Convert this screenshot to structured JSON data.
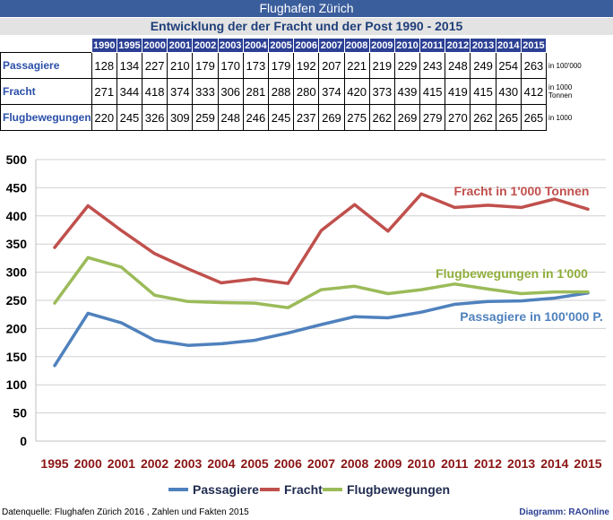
{
  "header": {
    "title": "Flughafen Zürich",
    "subtitle": "Entwicklung der der Fracht und der Post  1990 - 2015"
  },
  "table": {
    "years": [
      "1990",
      "1995",
      "2000",
      "2001",
      "2002",
      "2003",
      "2004",
      "2005",
      "2006",
      "2007",
      "2008",
      "2009",
      "2010",
      "2011",
      "2012",
      "2013",
      "2014",
      "2015"
    ],
    "rows": [
      {
        "label": "Passagiere",
        "values": [
          "128",
          "134",
          "227",
          "210",
          "179",
          "170",
          "173",
          "179",
          "192",
          "207",
          "221",
          "219",
          "229",
          "243",
          "248",
          "249",
          "254",
          "263"
        ],
        "unit": "in 100'000"
      },
      {
        "label": "Fracht",
        "values": [
          "271",
          "344",
          "418",
          "374",
          "333",
          "306",
          "281",
          "288",
          "280",
          "374",
          "420",
          "373",
          "439",
          "415",
          "419",
          "415",
          "430",
          "412"
        ],
        "unit": "in 1000 Tonnen"
      },
      {
        "label": "Flugbewegungen",
        "values": [
          "220",
          "245",
          "326",
          "309",
          "259",
          "248",
          "246",
          "245",
          "237",
          "269",
          "275",
          "262",
          "269",
          "279",
          "270",
          "262",
          "265",
          "265"
        ],
        "unit": "in 1000"
      }
    ]
  },
  "chart_data": {
    "type": "line",
    "categories": [
      "1995",
      "2000",
      "2001",
      "2002",
      "2003",
      "2004",
      "2005",
      "2006",
      "2007",
      "2008",
      "2009",
      "2010",
      "2011",
      "2012",
      "2013",
      "2014",
      "2015"
    ],
    "ylim": [
      0,
      500
    ],
    "yticks": [
      "0",
      "50",
      "100",
      "150",
      "200",
      "250",
      "300",
      "350",
      "400",
      "450",
      "500"
    ],
    "grid": true,
    "series": [
      {
        "name": "Passagiere",
        "color": "#4f81bd",
        "values": [
          134,
          227,
          210,
          179,
          170,
          173,
          179,
          192,
          207,
          221,
          219,
          229,
          243,
          248,
          249,
          254,
          263
        ]
      },
      {
        "name": "Fracht",
        "color": "#c0504d",
        "values": [
          344,
          418,
          374,
          333,
          306,
          281,
          288,
          280,
          374,
          420,
          373,
          439,
          415,
          419,
          415,
          430,
          412
        ]
      },
      {
        "name": "Flugbewegungen",
        "color": "#9bbb59",
        "values": [
          245,
          326,
          309,
          259,
          248,
          246,
          245,
          237,
          269,
          275,
          262,
          269,
          279,
          270,
          262,
          265,
          265
        ]
      }
    ],
    "annotations": {
      "fracht": "Fracht in 1'000 Tonnen",
      "flug": "Flugbewegungen in 1'000",
      "pass": "Passagiere in 100'000 P."
    },
    "annotation_colors": {
      "fracht": "#c0504d",
      "flug": "#8fae3a",
      "pass": "#4f81bd"
    },
    "legend": {
      "placement": "bottom",
      "items": [
        "Passagiere",
        "Fracht",
        "Flugbewegungen"
      ]
    }
  },
  "footer": {
    "source": "Datenquelle: Flughafen Zürich 2016  ,  Zahlen und Fakten 2015",
    "credit": "Diagramm: RAOnline"
  }
}
